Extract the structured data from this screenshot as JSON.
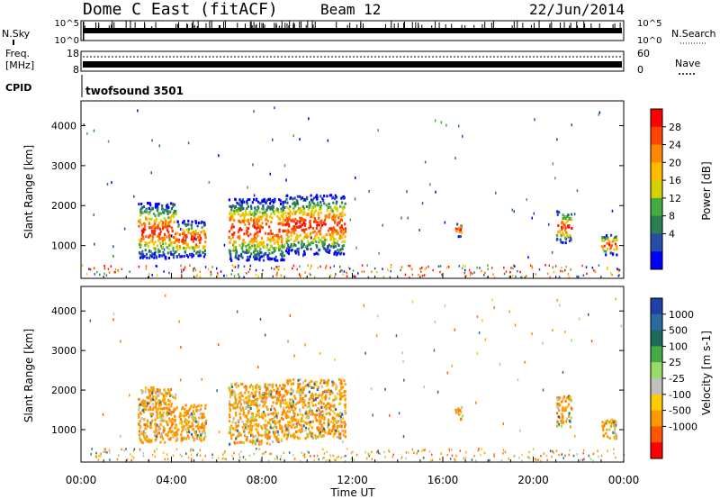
{
  "header": {
    "radar": "Dome C East (fitACF)",
    "beam": "Beam 12",
    "date": "22/Jun/2014"
  },
  "top_panels": {
    "nsky_label": "N.Sky",
    "nsky_ticks": [
      "10^5",
      "10^0"
    ],
    "nsearch_label": "N.Search",
    "nsearch_ticks": [
      "10^5",
      "10^0"
    ],
    "freq_label_line1": "Freq.",
    "freq_label_line2": "[MHz]",
    "freq_ticks": [
      "18",
      "8"
    ],
    "nave_label": "Nave",
    "nave_ticks": [
      "60",
      "0"
    ],
    "cpid_label": "CPID",
    "cpid_text": "twofsound 3501"
  },
  "chart_data": [
    {
      "type": "heatmap",
      "name": "power",
      "ylabel": "Slant Range [km]",
      "yticks": [
        1000,
        2000,
        3000,
        4000
      ],
      "ylim": [
        180,
        4620
      ],
      "xlim": [
        "00:00",
        "24:00"
      ],
      "colorbar_label": "Power [dB]",
      "colorbar_ticks": [
        "28",
        "24",
        "20",
        "16",
        "12",
        "8",
        "4"
      ],
      "colorbar_colors": [
        "#ff0000",
        "#ff4400",
        "#ff8800",
        "#ffbb00",
        "#d2d200",
        "#44aa44",
        "#2a8050",
        "#284ca8",
        "#0000ff"
      ],
      "echo_regions": [
        {
          "t_start": "02:30",
          "t_end": "04:10",
          "range_min": 700,
          "range_max": 2100
        },
        {
          "t_start": "04:10",
          "t_end": "05:30",
          "range_min": 750,
          "range_max": 1650
        },
        {
          "t_start": "06:30",
          "t_end": "09:00",
          "range_min": 650,
          "range_max": 2200
        },
        {
          "t_start": "09:00",
          "t_end": "11:40",
          "range_min": 800,
          "range_max": 2300
        },
        {
          "t_start": "16:30",
          "t_end": "16:50",
          "range_min": 1250,
          "range_max": 1600
        },
        {
          "t_start": "21:00",
          "t_end": "21:40",
          "range_min": 1100,
          "range_max": 1900
        },
        {
          "t_start": "23:00",
          "t_end": "23:40",
          "range_min": 800,
          "range_max": 1300
        }
      ]
    },
    {
      "type": "heatmap",
      "name": "velocity",
      "ylabel": "Slant Range [km]",
      "yticks": [
        1000,
        2000,
        3000,
        4000
      ],
      "ylim": [
        180,
        4620
      ],
      "xlim": [
        "00:00",
        "24:00"
      ],
      "colorbar_label": "Velocity [m s-1]",
      "colorbar_ticks": [
        "1000",
        "500",
        "100",
        "25",
        "-25",
        "-100",
        "-500",
        "-1000"
      ],
      "colorbar_colors": [
        "#2040a8",
        "#2a6a9e",
        "#1e6a5a",
        "#44aa44",
        "#99dd66",
        "#c0c0c0",
        "#ffcc00",
        "#ff9900",
        "#ff5500",
        "#ff0000"
      ],
      "xticks": [
        "00:00",
        "04:00",
        "08:00",
        "12:00",
        "16:00",
        "20:00",
        "00:00"
      ],
      "xlabel": "Time UT"
    }
  ]
}
